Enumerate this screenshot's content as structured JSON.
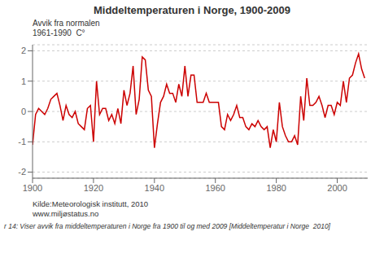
{
  "chart_data": {
    "type": "line",
    "title": "Middeltemperaturen i Norge, 1900-2009",
    "ylabel": [
      "Avvik fra normalen",
      "1961-1990  C°"
    ],
    "annotations": [
      "Kilde:Meteorologisk institutt, 2010",
      "www.miljøstatus.no",
      "r 14: Viser avvik fra middeltemperaturen i Norge fra 1900 til og med 2009 [Middeltemperatur i Norge  2010]"
    ],
    "x": [
      1900,
      1901,
      1902,
      1903,
      1904,
      1905,
      1906,
      1907,
      1908,
      1909,
      1910,
      1911,
      1912,
      1913,
      1914,
      1915,
      1916,
      1917,
      1918,
      1919,
      1920,
      1921,
      1922,
      1923,
      1924,
      1925,
      1926,
      1927,
      1928,
      1929,
      1930,
      1931,
      1932,
      1933,
      1934,
      1935,
      1936,
      1937,
      1938,
      1939,
      1940,
      1941,
      1942,
      1943,
      1944,
      1945,
      1946,
      1947,
      1948,
      1949,
      1950,
      1951,
      1952,
      1953,
      1954,
      1955,
      1956,
      1957,
      1958,
      1959,
      1960,
      1961,
      1962,
      1963,
      1964,
      1965,
      1966,
      1967,
      1968,
      1969,
      1970,
      1971,
      1972,
      1973,
      1974,
      1975,
      1976,
      1977,
      1978,
      1979,
      1980,
      1981,
      1982,
      1983,
      1984,
      1985,
      1986,
      1987,
      1988,
      1989,
      1990,
      1991,
      1992,
      1993,
      1994,
      1995,
      1996,
      1997,
      1998,
      1999,
      2000,
      2001,
      2002,
      2003,
      2004,
      2005,
      2006,
      2007,
      2008,
      2009
    ],
    "values": [
      -1.1,
      -0.1,
      0.1,
      0.0,
      -0.1,
      0.1,
      0.4,
      0.5,
      0.6,
      0.2,
      -0.3,
      0.2,
      -0.1,
      -0.2,
      0.0,
      -0.4,
      -0.5,
      -0.6,
      0.1,
      0.2,
      -1.0,
      1.0,
      -0.1,
      0.1,
      0.1,
      -0.3,
      -0.1,
      -0.4,
      0.1,
      -0.4,
      0.7,
      0.2,
      0.6,
      1.5,
      -0.1,
      0.4,
      1.8,
      1.7,
      0.7,
      0.5,
      -1.2,
      -0.4,
      0.3,
      0.5,
      0.9,
      0.6,
      0.6,
      0.3,
      0.9,
      0.5,
      1.5,
      0.5,
      1.2,
      1.2,
      0.3,
      0.3,
      0.3,
      0.6,
      0.3,
      0.3,
      0.3,
      0.3,
      -0.5,
      -0.6,
      -0.1,
      -0.3,
      -0.1,
      0.2,
      -0.2,
      -0.2,
      -0.5,
      -0.6,
      -0.4,
      -0.5,
      -0.3,
      -0.5,
      -0.6,
      -0.5,
      -1.2,
      -0.6,
      -1.0,
      0.3,
      -0.5,
      -0.8,
      -1.0,
      -1.0,
      -0.8,
      -1.1,
      0.5,
      -0.3,
      1.1,
      0.2,
      0.2,
      0.3,
      0.5,
      0.2,
      -0.2,
      0.2,
      0.2,
      -0.1,
      0.3,
      0.2,
      1.0,
      0.3,
      1.1,
      1.2,
      1.6,
      1.9,
      1.4,
      1.1
    ],
    "color": "#cc0000",
    "xlim": [
      1900,
      2010
    ],
    "ylim": [
      -2.2,
      2.2
    ],
    "xticks": [
      1900,
      1920,
      1940,
      1960,
      1980,
      2000
    ],
    "yticks": [
      -2,
      -1,
      0,
      1,
      2
    ],
    "grid": true
  }
}
